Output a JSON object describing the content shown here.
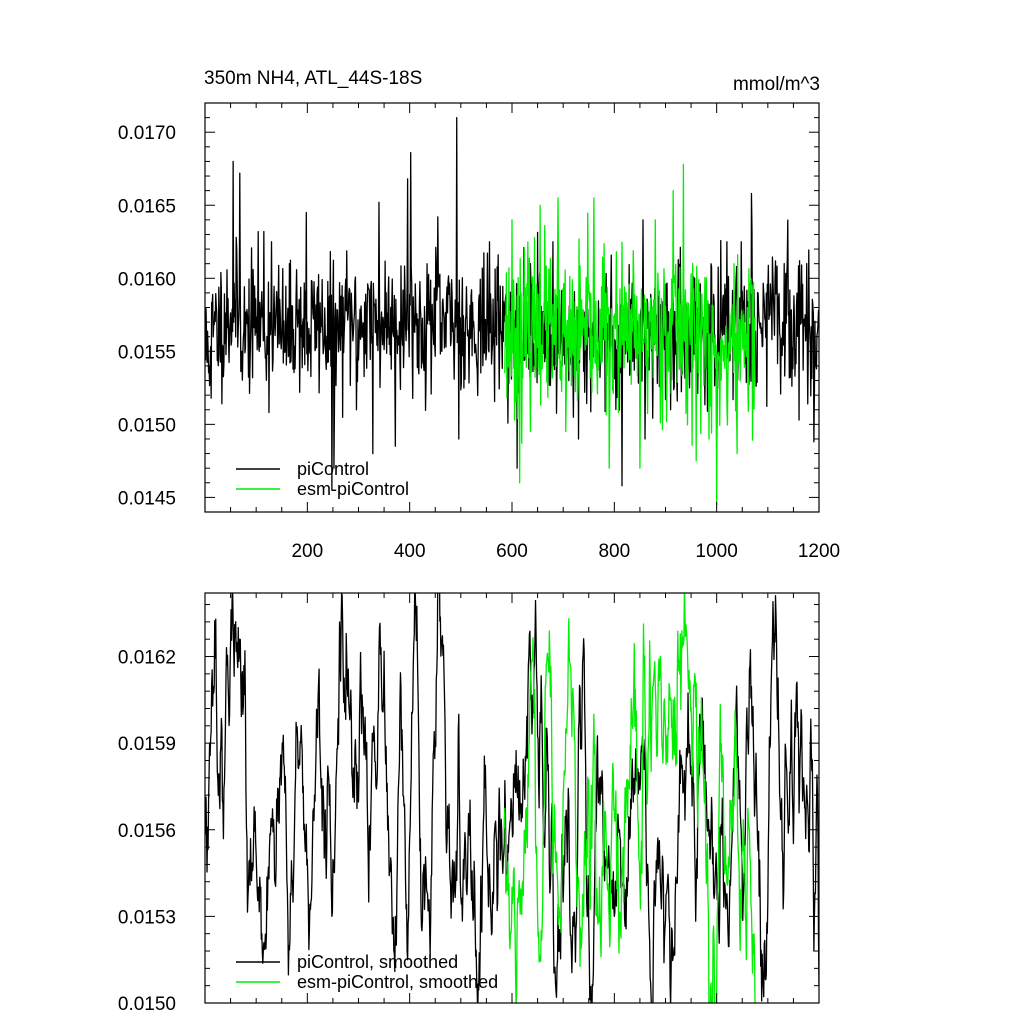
{
  "title_left": "350m NH4, ATL_44S-18S",
  "title_right": "mmol/m^3",
  "colors": {
    "piControl": "#000000",
    "esm_piControl": "#00ee00"
  },
  "chart_data": [
    {
      "type": "line",
      "panel": "top",
      "title": "350m NH4, ATL_44S-18S",
      "units": "mmol/m^3",
      "xlim": [
        0,
        1200
      ],
      "ylim": [
        0.0144,
        0.0172
      ],
      "x_ticks": [
        200,
        400,
        600,
        800,
        1000,
        1200
      ],
      "x_tick_labels": [
        "200",
        "400",
        "600",
        "800",
        "1000",
        "1200"
      ],
      "y_ticks": [
        0.0145,
        0.015,
        0.0155,
        0.016,
        0.0165,
        0.017
      ],
      "y_tick_labels": [
        "0.0145",
        "0.0150",
        "0.0155",
        "0.0160",
        "0.0165",
        "0.0170"
      ],
      "legend_placement": "bottom-left",
      "series": [
        {
          "name": "piControl",
          "x_range": [
            1,
            1200
          ],
          "anchors": [
            [
              1,
              0.0155
            ],
            [
              20,
              0.01565
            ],
            [
              40,
              0.01572
            ],
            [
              60,
              0.01578
            ],
            [
              80,
              0.0156
            ],
            [
              100,
              0.01575
            ],
            [
              120,
              0.0156
            ],
            [
              140,
              0.0157
            ],
            [
              160,
              0.01558
            ],
            [
              180,
              0.01575
            ],
            [
              200,
              0.0156
            ],
            [
              220,
              0.01572
            ],
            [
              240,
              0.01565
            ],
            [
              260,
              0.0156
            ],
            [
              280,
              0.01575
            ],
            [
              300,
              0.01565
            ],
            [
              320,
              0.01578
            ],
            [
              340,
              0.01565
            ],
            [
              360,
              0.01575
            ],
            [
              380,
              0.0157
            ],
            [
              400,
              0.01575
            ],
            [
              420,
              0.01565
            ],
            [
              440,
              0.01572
            ],
            [
              460,
              0.01568
            ],
            [
              480,
              0.0157
            ],
            [
              500,
              0.01572
            ],
            [
              520,
              0.01565
            ],
            [
              540,
              0.0157
            ],
            [
              560,
              0.01568
            ],
            [
              580,
              0.0157
            ],
            [
              600,
              0.01565
            ],
            [
              620,
              0.01558
            ],
            [
              640,
              0.0157
            ],
            [
              660,
              0.01565
            ],
            [
              680,
              0.01555
            ],
            [
              700,
              0.01562
            ],
            [
              720,
              0.0155
            ],
            [
              740,
              0.0156
            ],
            [
              760,
              0.01558
            ],
            [
              780,
              0.01565
            ],
            [
              800,
              0.01555
            ],
            [
              820,
              0.01562
            ],
            [
              840,
              0.0156
            ],
            [
              860,
              0.01568
            ],
            [
              880,
              0.0156
            ],
            [
              900,
              0.01565
            ],
            [
              920,
              0.01558
            ],
            [
              940,
              0.01562
            ],
            [
              960,
              0.0157
            ],
            [
              980,
              0.0156
            ],
            [
              1000,
              0.01555
            ],
            [
              1020,
              0.01562
            ],
            [
              1040,
              0.0157
            ],
            [
              1060,
              0.01575
            ],
            [
              1080,
              0.01568
            ],
            [
              1100,
              0.01575
            ],
            [
              1120,
              0.0157
            ],
            [
              1140,
              0.01572
            ],
            [
              1160,
              0.01565
            ],
            [
              1180,
              0.0157
            ],
            [
              1200,
              0.0156
            ]
          ],
          "noise_sd": 0.00022,
          "extremes": [
            [
              12,
              0.01518
            ],
            [
              55,
              0.0168
            ],
            [
              68,
              0.01672
            ],
            [
              115,
              0.01632
            ],
            [
              130,
              0.01625
            ],
            [
              198,
              0.01645
            ],
            [
              248,
              0.01455
            ],
            [
              252,
              0.0147
            ],
            [
              296,
              0.0151
            ],
            [
              328,
              0.0148
            ],
            [
              340,
              0.01652
            ],
            [
              372,
              0.01485
            ],
            [
              396,
              0.01668
            ],
            [
              402,
              0.01686
            ],
            [
              455,
              0.01642
            ],
            [
              492,
              0.0171
            ],
            [
              496,
              0.0149
            ],
            [
              610,
              0.0147
            ],
            [
              636,
              0.0161
            ],
            [
              680,
              0.01625
            ],
            [
              730,
              0.0149
            ],
            [
              815,
              0.01458
            ],
            [
              856,
              0.0164
            ],
            [
              860,
              0.0149
            ],
            [
              910,
              0.0151
            ],
            [
              990,
              0.01608
            ],
            [
              1000,
              0.01478
            ],
            [
              1020,
              0.01625
            ],
            [
              1048,
              0.01625
            ],
            [
              1068,
              0.01658
            ],
            [
              1078,
              0.01532
            ],
            [
              1132,
              0.0161
            ],
            [
              1162,
              0.01612
            ],
            [
              1178,
              0.01514
            ],
            [
              1190,
              0.01488
            ]
          ],
          "seed": 11,
          "smooth": 0
        },
        {
          "name": "esm-piControl",
          "x_range": [
            585,
            1075
          ],
          "anchors": [
            [
              585,
              0.01565
            ],
            [
              620,
              0.0156
            ],
            [
              660,
              0.0157
            ],
            [
              700,
              0.01555
            ],
            [
              740,
              0.0156
            ],
            [
              780,
              0.01568
            ],
            [
              820,
              0.01558
            ],
            [
              860,
              0.01562
            ],
            [
              900,
              0.0157
            ],
            [
              940,
              0.01568
            ],
            [
              980,
              0.0156
            ],
            [
              1000,
              0.0154
            ],
            [
              1020,
              0.0155
            ],
            [
              1040,
              0.01555
            ],
            [
              1075,
              0.01565
            ]
          ],
          "noise_sd": 0.00027,
          "extremes": [
            [
              600,
              0.0164
            ],
            [
              615,
              0.0146
            ],
            [
              655,
              0.0165
            ],
            [
              690,
              0.01655
            ],
            [
              705,
              0.01495
            ],
            [
              760,
              0.01655
            ],
            [
              790,
              0.0147
            ],
            [
              850,
              0.0147
            ],
            [
              880,
              0.0164
            ],
            [
              915,
              0.0166
            ],
            [
              935,
              0.01678
            ],
            [
              960,
              0.01475
            ],
            [
              985,
              0.0149
            ],
            [
              1000,
              0.01445
            ],
            [
              1010,
              0.0156
            ],
            [
              1040,
              0.0148
            ],
            [
              1060,
              0.0158
            ]
          ],
          "seed": 23,
          "smooth": 0
        }
      ]
    },
    {
      "type": "line",
      "panel": "bottom",
      "xlim": [
        0,
        1200
      ],
      "ylim": [
        0.015,
        0.01642
      ],
      "x_ticks": [
        200,
        400,
        600,
        800,
        1000,
        1200
      ],
      "x_tick_labels": [],
      "y_ticks": [
        0.015,
        0.0153,
        0.0156,
        0.0159,
        0.0162
      ],
      "y_tick_labels": [
        "0.0150",
        "0.0153",
        "0.0156",
        "0.0159",
        "0.0162"
      ],
      "legend_placement": "bottom-left",
      "series": [
        {
          "name": "piControl, smoothed",
          "x_range": [
            1,
            1200
          ],
          "anchors": [
            [
              1,
              0.0156
            ],
            [
              20,
              0.0158
            ],
            [
              40,
              0.016
            ],
            [
              60,
              0.0161
            ],
            [
              80,
              0.0157
            ],
            [
              100,
              0.01555
            ],
            [
              120,
              0.01565
            ],
            [
              140,
              0.01575
            ],
            [
              160,
              0.0156
            ],
            [
              180,
              0.01585
            ],
            [
              200,
              0.01565
            ],
            [
              220,
              0.0156
            ],
            [
              240,
              0.01555
            ],
            [
              260,
              0.0158
            ],
            [
              280,
              0.0159
            ],
            [
              300,
              0.01565
            ],
            [
              320,
              0.016
            ],
            [
              340,
              0.01585
            ],
            [
              360,
              0.0156
            ],
            [
              380,
              0.01565
            ],
            [
              400,
              0.0158
            ],
            [
              420,
              0.016
            ],
            [
              440,
              0.01575
            ],
            [
              460,
              0.0159
            ],
            [
              480,
              0.01575
            ],
            [
              500,
              0.01565
            ],
            [
              520,
              0.0157
            ],
            [
              540,
              0.01575
            ],
            [
              560,
              0.0156
            ],
            [
              580,
              0.0158
            ],
            [
              600,
              0.01575
            ],
            [
              620,
              0.0156
            ],
            [
              640,
              0.0158
            ],
            [
              660,
              0.0157
            ],
            [
              680,
              0.01565
            ],
            [
              700,
              0.0155
            ],
            [
              720,
              0.0158
            ],
            [
              740,
              0.0157
            ],
            [
              760,
              0.01555
            ],
            [
              780,
              0.0157
            ],
            [
              800,
              0.0156
            ],
            [
              820,
              0.01575
            ],
            [
              840,
              0.01565
            ],
            [
              860,
              0.0157
            ],
            [
              880,
              0.0156
            ],
            [
              900,
              0.01575
            ],
            [
              920,
              0.01565
            ],
            [
              940,
              0.0157
            ],
            [
              960,
              0.01575
            ],
            [
              980,
              0.0157
            ],
            [
              1000,
              0.0156
            ],
            [
              1020,
              0.01575
            ],
            [
              1040,
              0.0158
            ],
            [
              1060,
              0.0157
            ],
            [
              1080,
              0.01575
            ],
            [
              1100,
              0.0156
            ],
            [
              1120,
              0.0157
            ],
            [
              1140,
              0.0158
            ],
            [
              1160,
              0.01565
            ],
            [
              1180,
              0.0157
            ],
            [
              1200,
              0.0156
            ]
          ],
          "noise_sd": 0.00028,
          "extremes": [
            [
              68,
              0.01626
            ],
            [
              78,
              0.01622
            ],
            [
              248,
              0.0153
            ],
            [
              320,
              0.01535
            ],
            [
              340,
              0.01622
            ],
            [
              372,
              0.0153
            ],
            [
              395,
              0.01518
            ],
            [
              412,
              0.01635
            ],
            [
              424,
              0.01525
            ],
            [
              454,
              0.01622
            ],
            [
              485,
              0.01535
            ],
            [
              496,
              0.016
            ],
            [
              572,
              0.01535
            ],
            [
              640,
              0.016
            ],
            [
              700,
              0.01535
            ],
            [
              800,
              0.0153
            ],
            [
              960,
              0.0154
            ],
            [
              1100,
              0.01535
            ],
            [
              1145,
              0.01592
            ],
            [
              1190,
              0.01518
            ],
            [
              1198,
              0.01558
            ]
          ],
          "seed": 37,
          "smooth": 1
        },
        {
          "name": "esm-piControl, smoothed",
          "x_range": [
            585,
            1075
          ],
          "anchors": [
            [
              585,
              0.0156
            ],
            [
              620,
              0.0157
            ],
            [
              660,
              0.0158
            ],
            [
              700,
              0.0157
            ],
            [
              740,
              0.01565
            ],
            [
              780,
              0.01575
            ],
            [
              820,
              0.0156
            ],
            [
              860,
              0.01575
            ],
            [
              900,
              0.01585
            ],
            [
              940,
              0.01595
            ],
            [
              980,
              0.01575
            ],
            [
              1000,
              0.0155
            ],
            [
              1020,
              0.0156
            ],
            [
              1040,
              0.0154
            ],
            [
              1075,
              0.0156
            ]
          ],
          "noise_sd": 0.00032,
          "extremes": [
            [
              600,
              0.0154
            ],
            [
              665,
              0.0161
            ],
            [
              680,
              0.01545
            ],
            [
              760,
              0.016
            ],
            [
              790,
              0.01528
            ],
            [
              850,
              0.0154
            ],
            [
              880,
              0.0161
            ],
            [
              915,
              0.01605
            ],
            [
              935,
              0.01624
            ],
            [
              955,
              0.0161
            ],
            [
              1000,
              0.01505
            ],
            [
              1015,
              0.01545
            ],
            [
              1045,
              0.01525
            ],
            [
              1058,
              0.01515
            ]
          ],
          "seed": 53,
          "smooth": 1
        }
      ]
    }
  ]
}
